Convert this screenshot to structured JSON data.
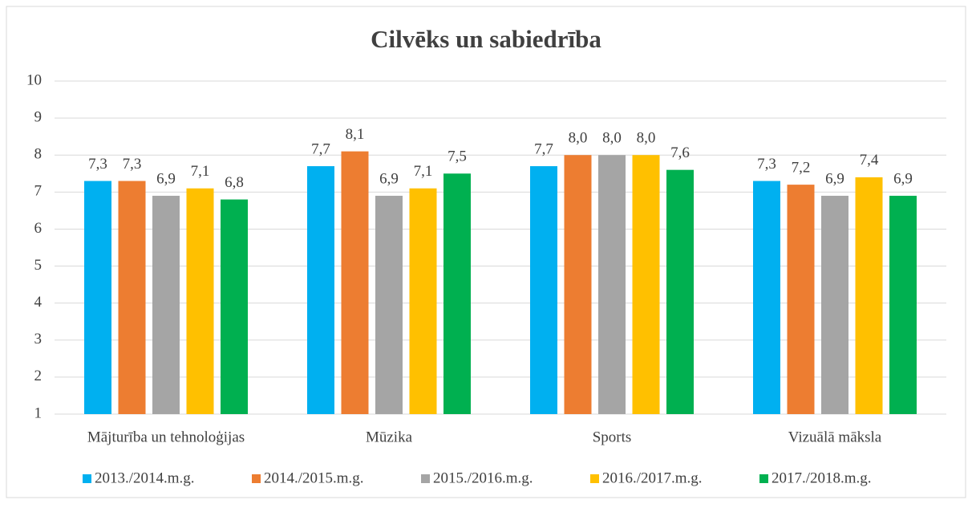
{
  "chart_data": {
    "type": "bar",
    "title": "Cilvēks un sabiedrība",
    "categories": [
      "Mājturība un tehnoloģijas",
      "Mūzika",
      "Sports",
      "Vizuālā māksla"
    ],
    "series": [
      {
        "name": "2013./2014.m.g.",
        "color": "#00b0f0",
        "values": [
          7.3,
          7.7,
          7.7,
          7.3
        ],
        "value_labels": [
          "7,3",
          "7,7",
          "7,7",
          "7,3"
        ]
      },
      {
        "name": "2014./2015.m.g.",
        "color": "#ed7d31",
        "values": [
          7.3,
          8.1,
          8.0,
          7.2
        ],
        "value_labels": [
          "7,3",
          "8,1",
          "8,0",
          "7,2"
        ]
      },
      {
        "name": "2015./2016.m.g.",
        "color": "#a5a5a5",
        "values": [
          6.9,
          6.9,
          8.0,
          6.9
        ],
        "value_labels": [
          "6,9",
          "6,9",
          "8,0",
          "6,9"
        ]
      },
      {
        "name": "2016./2017.m.g.",
        "color": "#ffc000",
        "values": [
          7.1,
          7.1,
          8.0,
          7.4
        ],
        "value_labels": [
          "7,1",
          "7,1",
          "8,0",
          "7,4"
        ]
      },
      {
        "name": "2017./2018.m.g.",
        "color": "#00b050",
        "values": [
          6.8,
          7.5,
          7.6,
          6.9
        ],
        "value_labels": [
          "6,8",
          "7,5",
          "7,6",
          "6,9"
        ]
      }
    ],
    "ylim": [
      1,
      10
    ],
    "yticks": [
      1,
      2,
      3,
      4,
      5,
      6,
      7,
      8,
      9,
      10
    ],
    "grid": true,
    "legend": "bottom"
  }
}
